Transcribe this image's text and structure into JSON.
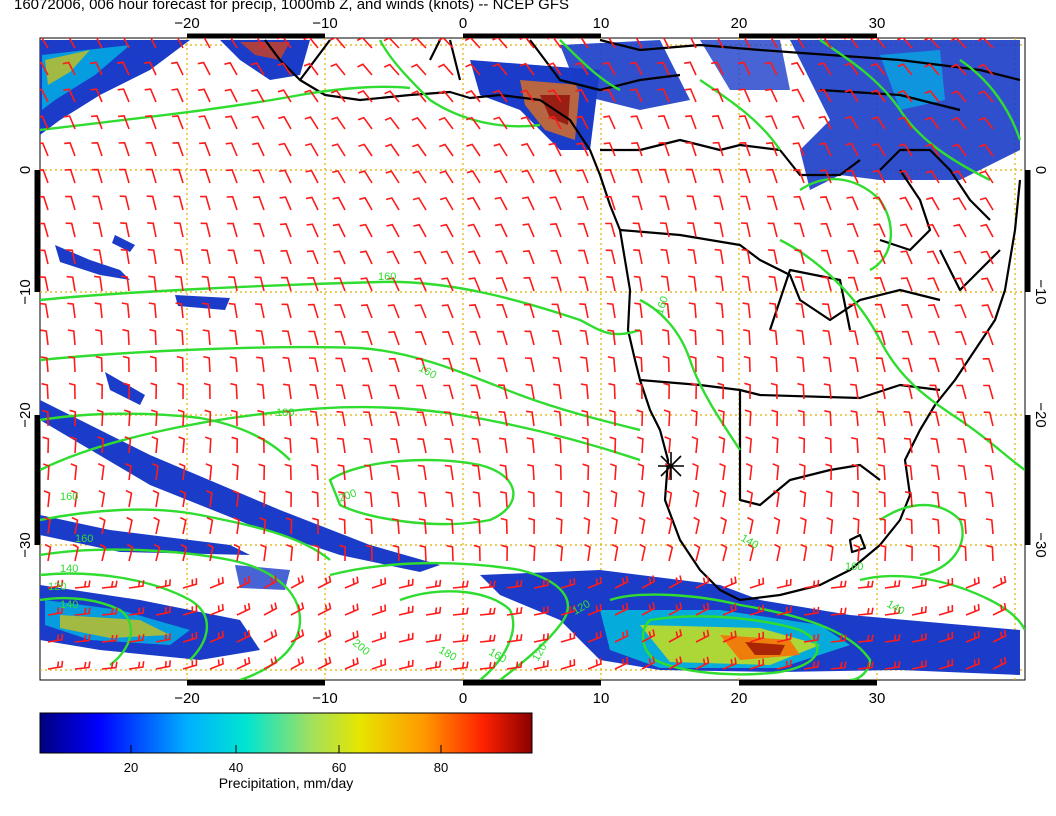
{
  "title": "16072006, 006 hour forecast for precip, 1000mb Z, and winds (knots) -- NCEP GFS",
  "axes": {
    "lon_top_labels": [
      "−20",
      "−10",
      "0",
      "10",
      "20",
      "30"
    ],
    "lon_bottom_labels": [
      "−20",
      "−10",
      "0",
      "10",
      "20",
      "30"
    ],
    "lat_left_labels": [
      "0",
      "−10",
      "−20",
      "−30"
    ],
    "lat_right_labels": [
      "0",
      "−10",
      "−20",
      "−30"
    ]
  },
  "contour_labels": [
    "160",
    "160",
    "180",
    "200",
    "160",
    "160",
    "140",
    "120",
    "140",
    "200",
    "180",
    "160",
    "120",
    "160",
    "120",
    "140",
    "140",
    "160"
  ],
  "colorbar": {
    "title": "Precipitation, mm/day",
    "ticks": [
      "20",
      "40",
      "60",
      "80"
    ],
    "colors": [
      "#000080",
      "#0000ff",
      "#00b0ff",
      "#00e5d0",
      "#a0e060",
      "#e6e600",
      "#ff9900",
      "#ff2200",
      "#8b0000"
    ]
  },
  "colors": {
    "contour": "#2fdc2f",
    "wind_barb": "#ff1a1a",
    "grid": "#e0b000",
    "coast": "#000000"
  },
  "icons": {
    "station_marker": "asterisk-star-icon"
  }
}
